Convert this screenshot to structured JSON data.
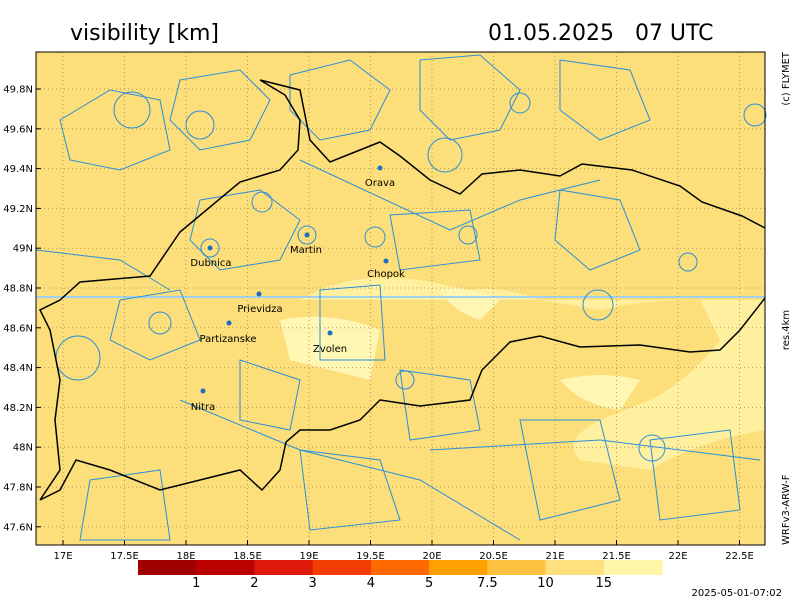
{
  "header": {
    "title": "visibility [km]",
    "date": "01.05.2025   07 UTC"
  },
  "side": {
    "credit": "(c) FLYMET",
    "resolution": "res.4km",
    "model": "WRFv3-ARW-F"
  },
  "timestamp": "2025-05-01-07:02",
  "map": {
    "lat_labels": [
      "49.8N",
      "49.6N",
      "49.4N",
      "49.2N",
      "49N",
      "48.8N",
      "48.6N",
      "48.4N",
      "48.2N",
      "48N",
      "47.8N",
      "47.6N"
    ],
    "lon_labels": [
      "17E",
      "17.5E",
      "18E",
      "18.5E",
      "19E",
      "19.5E",
      "20E",
      "20.5E",
      "21E",
      "21.5E",
      "22E",
      "22.5E"
    ],
    "cities": [
      "Orava",
      "Martin",
      "Dubnica",
      "Chopok",
      "Prievidza",
      "Partizanske",
      "Zvolen",
      "Nitra"
    ]
  },
  "legend": {
    "colors": [
      "#a00000",
      "#bb0000",
      "#dd1a0a",
      "#f23c00",
      "#ff6a00",
      "#ffa000",
      "#ffc240",
      "#ffe07e",
      "#fff5a8"
    ],
    "labels": [
      1,
      2,
      3,
      4,
      5,
      7.5,
      10,
      15
    ]
  }
}
